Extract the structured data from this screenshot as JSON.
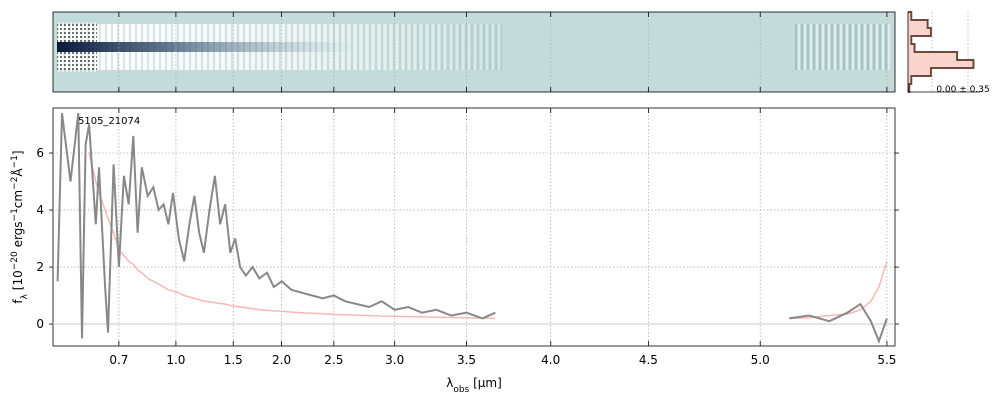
{
  "chart_data": [
    {
      "type": "line",
      "annotation": "5105_21074",
      "xlabel": [
        {
          "text": "λ"
        },
        {
          "text": "obs",
          "script": "sub"
        },
        {
          "text": " [μm]"
        }
      ],
      "ylabel": [
        {
          "text": "f"
        },
        {
          "text": "λ",
          "script": "sub"
        },
        {
          "text": " [10"
        },
        {
          "text": "−20",
          "script": "sup"
        },
        {
          "text": " ergs"
        },
        {
          "text": "−1",
          "script": "sup"
        },
        {
          "text": "cm"
        },
        {
          "text": "−2",
          "script": "sup"
        },
        {
          "text": "Å"
        },
        {
          "text": "−1",
          "script": "sup"
        },
        {
          "text": "]"
        }
      ],
      "xlim": [
        0.51,
        5.53
      ],
      "ylim": [
        -0.77,
        7.58
      ],
      "xticks": [
        0.7,
        {
          "value": 1,
          "label": "1.0"
        },
        1.5,
        {
          "value": 2,
          "label": "2.0"
        },
        2.5,
        {
          "value": 3,
          "label": "3.0"
        },
        3.5,
        {
          "value": 4,
          "label": "4.0"
        },
        4.5,
        {
          "value": 5,
          "label": "5.0"
        },
        5.5
      ],
      "yticks": [
        0,
        2,
        4,
        6
      ],
      "grid": true,
      "hline": 0,
      "x": [
        0.52,
        0.53,
        0.55,
        0.57,
        0.58,
        0.59,
        0.6,
        0.62,
        0.63,
        0.65,
        0.66,
        0.68,
        0.7,
        0.72,
        0.74,
        0.76,
        0.78,
        0.8,
        0.83,
        0.86,
        0.89,
        0.92,
        0.95,
        0.98,
        1.02,
        1.06,
        1.1,
        1.14,
        1.18,
        1.22,
        1.27,
        1.32,
        1.37,
        1.42,
        1.47,
        1.52,
        1.57,
        1.63,
        1.7,
        1.77,
        1.85,
        1.92,
        2.0,
        2.1,
        2.2,
        2.3,
        2.4,
        2.5,
        2.6,
        2.7,
        2.8,
        2.9,
        3.0,
        3.1,
        3.2,
        3.3,
        3.4,
        3.5,
        3.6,
        3.68,
        4.4,
        5.12,
        5.2,
        5.28,
        5.35,
        5.4,
        5.44,
        5.47,
        5.5
      ],
      "series": [
        {
          "color": "#f4b9b4",
          "width": 1.5,
          "values": [
            null,
            null,
            null,
            null,
            null,
            null,
            6.0,
            5.0,
            4.6,
            4.0,
            3.7,
            3.2,
            2.6,
            2.4,
            2.2,
            2.1,
            1.9,
            1.8,
            1.6,
            1.5,
            1.4,
            1.3,
            1.2,
            1.15,
            1.1,
            1.0,
            0.95,
            0.9,
            0.85,
            0.8,
            0.78,
            0.75,
            0.72,
            0.7,
            0.65,
            0.62,
            0.6,
            0.57,
            0.54,
            0.5,
            0.48,
            0.46,
            0.45,
            0.42,
            0.4,
            0.38,
            0.36,
            0.34,
            0.32,
            0.31,
            0.3,
            0.28,
            0.27,
            0.26,
            0.25,
            0.24,
            0.23,
            0.22,
            0.21,
            0.2,
            null,
            0.2,
            0.22,
            0.3,
            0.35,
            0.5,
            0.8,
            1.3,
            2.2
          ]
        },
        {
          "color": "#888888",
          "width": 2,
          "values": [
            1.5,
            7.4,
            5.0,
            7.4,
            -0.5,
            6.3,
            7.0,
            3.5,
            5.5,
            1.3,
            -0.3,
            5.6,
            2.0,
            5.2,
            4.2,
            6.6,
            3.2,
            5.5,
            4.5,
            4.8,
            4.0,
            4.2,
            3.5,
            4.6,
            3.0,
            2.2,
            3.5,
            4.5,
            3.2,
            2.5,
            4.0,
            5.2,
            3.5,
            4.2,
            2.5,
            3.0,
            2.0,
            1.7,
            2.0,
            1.6,
            1.8,
            1.3,
            1.5,
            1.2,
            1.1,
            1.0,
            0.9,
            1.0,
            0.8,
            0.7,
            0.6,
            0.8,
            0.5,
            0.6,
            0.4,
            0.5,
            0.3,
            0.4,
            0.2,
            0.4,
            null,
            0.2,
            0.3,
            0.1,
            0.4,
            0.7,
            0.1,
            -0.6,
            0.2
          ]
        }
      ]
    },
    {
      "type": "profile",
      "label": "0.00 ± 0.35",
      "xlim": [
        0,
        1.1
      ],
      "fill": "#f9d4cc",
      "color": "#6e4a3e",
      "values": [
        0.05,
        0.3,
        0.35,
        0.05,
        0.1,
        0.75,
        1.0,
        0.35,
        0.05,
        0.02
      ]
    }
  ]
}
